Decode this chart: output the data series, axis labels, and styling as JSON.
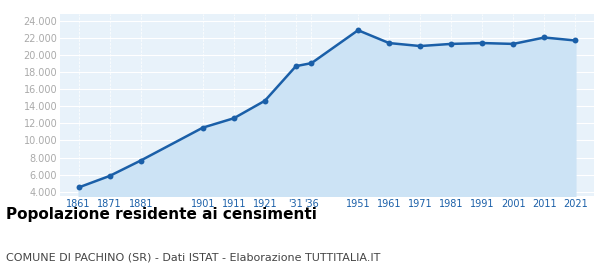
{
  "years": [
    1861,
    1871,
    1881,
    1901,
    1911,
    1921,
    1931,
    1936,
    1951,
    1961,
    1971,
    1981,
    1991,
    2001,
    2011,
    2021
  ],
  "population": [
    4500,
    5850,
    7650,
    11500,
    12600,
    14650,
    18700,
    19050,
    22900,
    21400,
    21050,
    21300,
    21400,
    21300,
    22050,
    21700
  ],
  "x_tick_labels": [
    "1861",
    "1871",
    "1881",
    "1901",
    "1911",
    "1921",
    "'31",
    "'36",
    "1951",
    "1961",
    "1971",
    "1981",
    "1991",
    "2001",
    "2011",
    "2021"
  ],
  "y_ticks": [
    4000,
    6000,
    8000,
    10000,
    12000,
    14000,
    16000,
    18000,
    20000,
    22000,
    24000
  ],
  "ylim": [
    3500,
    24800
  ],
  "xlim": [
    1855,
    2027
  ],
  "line_color": "#1a5fa8",
  "fill_color": "#cce3f5",
  "marker_color": "#1a5fa8",
  "bg_color": "#e8f2fa",
  "grid_color": "#ffffff",
  "x_tick_color": "#1a5fa8",
  "y_tick_color": "#aaaaaa",
  "title": "Popolazione residente ai censimenti",
  "subtitle": "COMUNE DI PACHINO (SR) - Dati ISTAT - Elaborazione TUTTITALIA.IT",
  "title_fontsize": 11,
  "subtitle_fontsize": 8
}
